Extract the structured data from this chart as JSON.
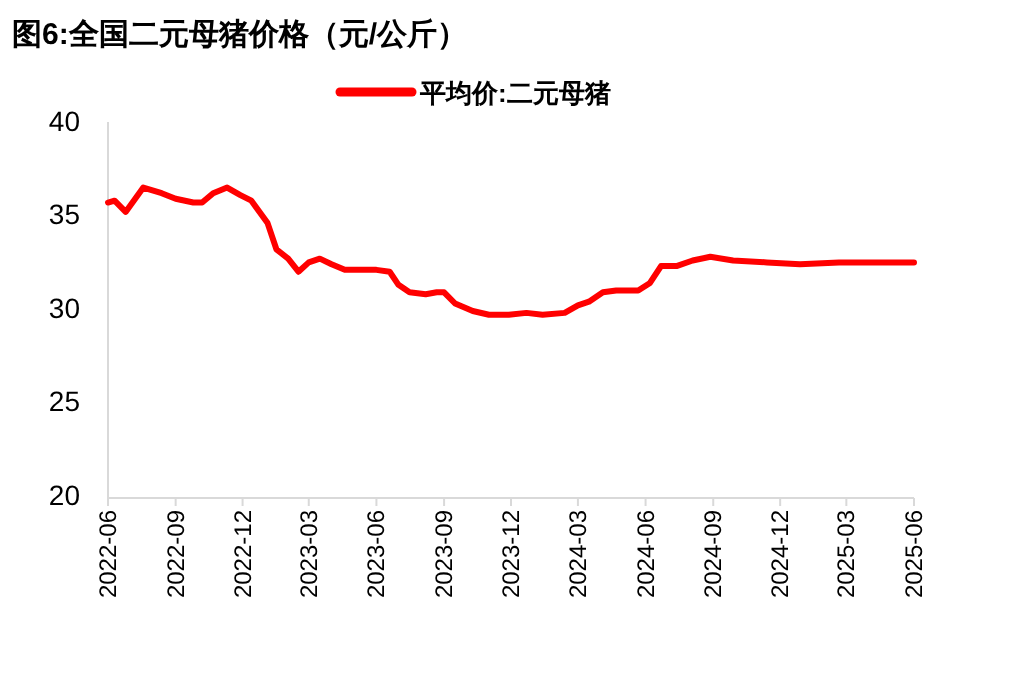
{
  "chart_data": {
    "type": "line",
    "title": "图6:全国二元母猪价格（元/公斤）",
    "x": [
      "2022-06-01",
      "2022-06-10",
      "2022-06-25",
      "2022-07-08",
      "2022-07-19",
      "2022-08-13",
      "2022-09-01",
      "2022-09-25",
      "2022-10-07",
      "2022-10-22",
      "2022-11-10",
      "2022-11-28",
      "2022-12-13",
      "2023-01-04",
      "2023-01-16",
      "2023-02-01",
      "2023-02-15",
      "2023-03-01",
      "2023-03-16",
      "2023-04-01",
      "2023-04-19",
      "2023-05-13",
      "2023-06-01",
      "2023-06-19",
      "2023-07-01",
      "2023-07-16",
      "2023-08-07",
      "2023-08-22",
      "2023-09-01",
      "2023-09-16",
      "2023-10-10",
      "2023-11-01",
      "2023-11-28",
      "2023-12-22",
      "2024-01-13",
      "2024-02-12",
      "2024-03-01",
      "2024-03-16",
      "2024-04-04",
      "2024-04-22",
      "2024-05-22",
      "2024-06-07",
      "2024-06-22",
      "2024-07-13",
      "2024-08-04",
      "2024-08-28",
      "2024-09-28",
      "2024-11-13",
      "2024-12-28",
      "2025-02-19",
      "2025-03-25",
      "2025-06-01"
    ],
    "series": [
      {
        "name": "平均价:二元母猪",
        "color": "#ff0000",
        "values": [
          35.8,
          35.9,
          35.3,
          36.0,
          36.6,
          36.3,
          36.0,
          35.8,
          35.8,
          36.3,
          36.6,
          36.2,
          35.9,
          34.7,
          33.3,
          32.8,
          32.1,
          32.6,
          32.8,
          32.5,
          32.2,
          32.2,
          32.2,
          32.1,
          31.4,
          31.0,
          30.9,
          31.0,
          31.0,
          30.4,
          30.0,
          29.8,
          29.8,
          29.9,
          29.8,
          29.9,
          30.3,
          30.5,
          31.0,
          31.1,
          31.1,
          31.5,
          32.4,
          32.4,
          32.7,
          32.9,
          32.7,
          32.6,
          32.5,
          32.6,
          32.6,
          32.6
        ]
      }
    ],
    "xlim": [
      "2022-06",
      "2025-06"
    ],
    "xticks": [
      "2022-06",
      "2022-09",
      "2022-12",
      "2023-03",
      "2023-06",
      "2023-09",
      "2023-12",
      "2024-03",
      "2024-06",
      "2024-09",
      "2024-12",
      "2025-03",
      "2025-06"
    ],
    "ylim": [
      20,
      40
    ],
    "yticks": [
      20,
      25,
      30,
      35,
      40
    ],
    "legend": "top",
    "grid": false,
    "marker": "none",
    "line_style": "solid"
  }
}
